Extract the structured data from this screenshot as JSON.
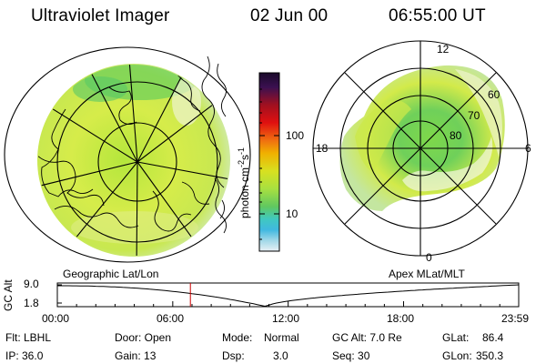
{
  "header": {
    "instrument": "Ultraviolet Imager",
    "date": "02 Jun 00",
    "time": "06:55:00 UT"
  },
  "left_panel": {
    "label": "Geographic Lat/Lon"
  },
  "right_panel": {
    "label": "Apex MLat/MLT",
    "mlt_labels": {
      "top": "12",
      "right": "6",
      "bottom": "0",
      "left": "18"
    },
    "mlat_labels": [
      "60",
      "70",
      "80"
    ]
  },
  "colorbar": {
    "unit": "photon cm",
    "unit_sup1": "-2",
    "unit_mid": "s",
    "unit_sup2": "-1",
    "ticks": [
      "100",
      "10"
    ]
  },
  "orbit_plot": {
    "ylabel": "GC Alt",
    "yticks": [
      "9.0",
      "1.8"
    ],
    "xticks": [
      "00:00",
      "06:00",
      "12:00",
      "18:00",
      "23:59"
    ],
    "current_time_hours": 6.9167,
    "line_color": "#cc0000"
  },
  "info": {
    "flt": "Flt: LBHL",
    "ip": "IP: 36.0",
    "door": "Door: Open",
    "gain": "Gain: 13",
    "mode_label": "Mode:",
    "mode_value": "Normal",
    "dsp_label": "Dsp:",
    "dsp_value": "3.0",
    "gcalt": "GC Alt: 7.0 Re",
    "seq": "Seq: 30",
    "glat_label": "GLat:",
    "glat_value": "86.4",
    "glon_label": "GLon:",
    "glon_value": "350.3"
  },
  "colors": {
    "aurora_low": "#6ad35a",
    "aurora_mid": "#a8e23c",
    "aurora_high": "#d8ec50",
    "background_glow": "#d4ebb0"
  }
}
